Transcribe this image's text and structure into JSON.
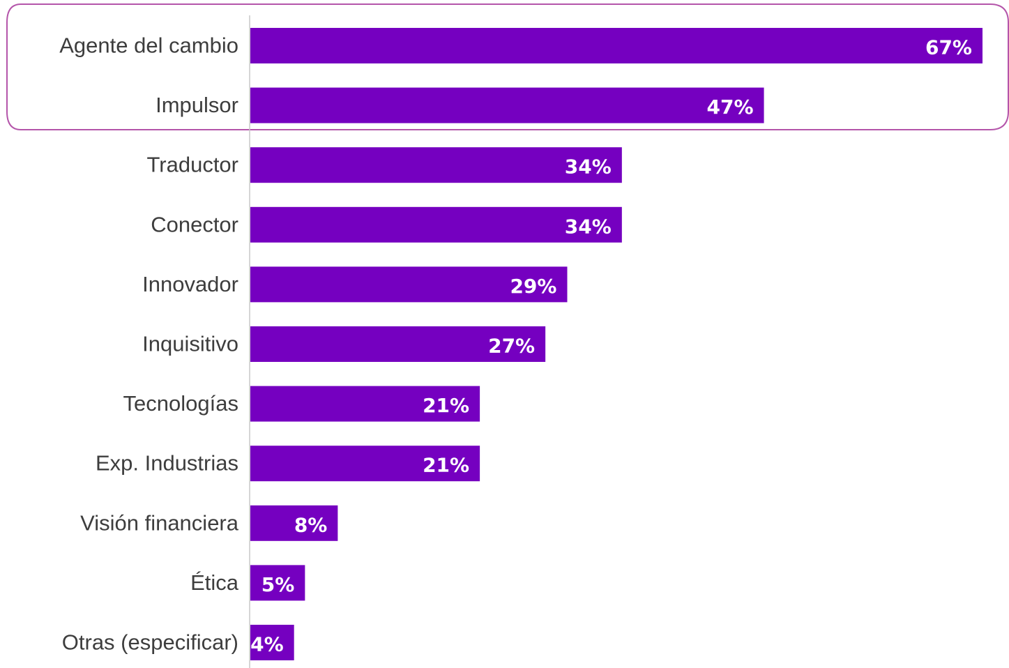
{
  "chart_data": {
    "type": "bar",
    "orientation": "horizontal",
    "categories": [
      "Agente del cambio",
      "Impulsor",
      "Traductor",
      "Conector",
      "Innovador",
      "Inquisitivo",
      "Tecnologías",
      "Exp. Industrias",
      "Visión financiera",
      "Ética",
      "Otras (especificar)"
    ],
    "values": [
      67,
      47,
      34,
      34,
      29,
      27,
      21,
      21,
      8,
      5,
      4
    ],
    "value_labels": [
      "67%",
      "47%",
      "34%",
      "34%",
      "29%",
      "27%",
      "21%",
      "21%",
      "8%",
      "5%",
      "4%"
    ],
    "unit": "%",
    "xlim": [
      0,
      67
    ],
    "grid": false,
    "highlighted_categories": [
      "Agente del cambio",
      "Impulsor"
    ],
    "colors": {
      "bar": "#7500c0",
      "value_label": "#ffffff",
      "category_label": "#3d3d3d",
      "axis": "#c8c8c8",
      "highlight_box": "#b455aa"
    }
  }
}
